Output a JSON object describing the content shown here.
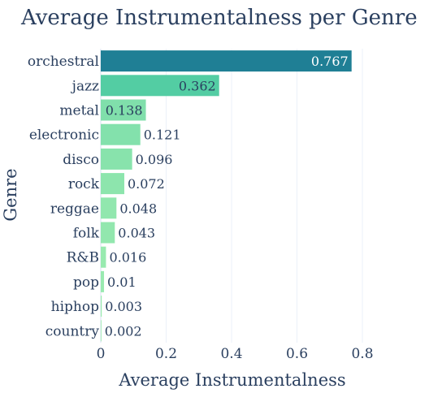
{
  "chart_data": {
    "type": "bar",
    "orientation": "horizontal",
    "title": "Average Instrumentalness per Genre",
    "xlabel": "Average Instrumentalness",
    "ylabel": "Genre",
    "xlim": [
      0,
      0.8
    ],
    "xticks": [
      "0",
      "0.2",
      "0.4",
      "0.6",
      "0.8"
    ],
    "grid": true,
    "color_scale": [
      "#9bebb0",
      "#4fcba2",
      "#1f7f95"
    ],
    "categories": [
      "orchestral",
      "jazz",
      "metal",
      "electronic",
      "disco",
      "rock",
      "reggae",
      "folk",
      "R&B",
      "pop",
      "hiphop",
      "country"
    ],
    "values": [
      0.767,
      0.362,
      0.138,
      0.121,
      0.096,
      0.072,
      0.048,
      0.043,
      0.016,
      0.01,
      0.003,
      0.002
    ],
    "labels": [
      "0.767",
      "0.362",
      "0.138",
      "0.121",
      "0.096",
      "0.072",
      "0.048",
      "0.043",
      "0.016",
      "0.01",
      "0.003",
      "0.002"
    ]
  }
}
